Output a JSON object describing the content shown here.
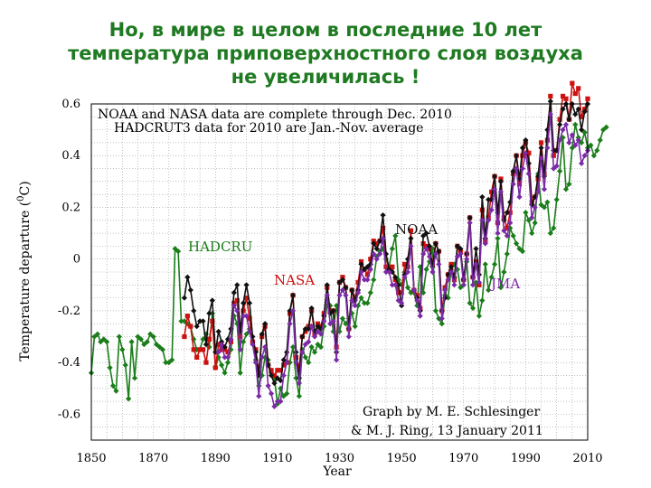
{
  "slide": {
    "title_lines": [
      "Но, в мире в целом в последние 10 лет",
      "температура приповерхностного слоя воздуха",
      "не увеличилась !"
    ]
  },
  "chart_data": {
    "type": "line",
    "title": "",
    "xlabel": "Year",
    "ylabel": "Temperature departure (°C)",
    "ylabel_parts": {
      "main": "Temperature departure (",
      "sup": "0",
      "unit": "C)"
    },
    "xlim": [
      1850,
      2010
    ],
    "ylim": [
      -0.7,
      0.6
    ],
    "x_ticks": [
      1850,
      1870,
      1890,
      1910,
      1930,
      1950,
      1970,
      1990,
      2010
    ],
    "x_tick_labels": [
      "1850",
      "1870",
      "1890",
      "1910",
      "1930",
      "1950",
      "1970",
      "1990",
      "2010"
    ],
    "y_ticks": [
      0.6,
      0.4,
      0.2,
      0,
      -0.2,
      -0.4,
      -0.6
    ],
    "y_tick_labels": [
      "0.6",
      "0.4",
      "0.2",
      "0",
      "-0.2",
      "-0.4",
      "-0.6"
    ],
    "grid": true,
    "notes": [
      "NOAA and NASA data are complete through Dec. 2010",
      "HADCRUT3 data for 2010 are Jan.-Nov. average"
    ],
    "credit": [
      "Graph by M. E. Schlesinger",
      "& M. J. Ring, 13 January 2011"
    ],
    "series": [
      {
        "name": "HADCRU",
        "label": "HADCRU",
        "color": "#1a7d1a",
        "marker": "diamond",
        "start_year": 1850,
        "values": [
          -0.44,
          -0.3,
          -0.29,
          -0.32,
          -0.31,
          -0.32,
          -0.42,
          -0.49,
          -0.51,
          -0.3,
          -0.35,
          -0.41,
          -0.54,
          -0.32,
          -0.46,
          -0.3,
          -0.31,
          -0.33,
          -0.32,
          -0.29,
          -0.3,
          -0.33,
          -0.34,
          -0.35,
          -0.4,
          -0.4,
          -0.39,
          0.04,
          0.03,
          -0.24,
          -0.24,
          -0.25,
          -0.26,
          -0.31,
          -0.35,
          -0.35,
          -0.31,
          -0.29,
          -0.34,
          -0.21,
          -0.42,
          -0.38,
          -0.41,
          -0.44,
          -0.4,
          -0.35,
          -0.22,
          -0.25,
          -0.44,
          -0.32,
          -0.29,
          -0.27,
          -0.32,
          -0.39,
          -0.49,
          -0.45,
          -0.38,
          -0.39,
          -0.44,
          -0.46,
          -0.56,
          -0.5,
          -0.53,
          -0.52,
          -0.4,
          -0.34,
          -0.46,
          -0.53,
          -0.35,
          -0.38,
          -0.4,
          -0.34,
          -0.36,
          -0.33,
          -0.34,
          -0.26,
          -0.18,
          -0.18,
          -0.28,
          -0.18,
          -0.28,
          -0.23,
          -0.25,
          -0.23,
          -0.21,
          -0.26,
          -0.18,
          -0.15,
          -0.17,
          -0.17,
          -0.13,
          -0.08,
          0.01,
          0.03,
          0.04,
          0.0,
          -0.03,
          0.04,
          0.09,
          -0.08,
          -0.1,
          -0.05,
          -0.11,
          -0.13,
          -0.13,
          -0.18,
          -0.03,
          -0.13,
          -0.04,
          -0.01,
          0.04,
          -0.2,
          -0.23,
          -0.25,
          -0.14,
          -0.15,
          -0.04,
          -0.02,
          -0.04,
          -0.11,
          -0.1,
          -0.01,
          -0.17,
          -0.19,
          -0.09,
          -0.22,
          -0.16,
          -0.02,
          -0.12,
          -0.07,
          -0.02,
          0.08,
          -0.11,
          -0.05,
          0.02,
          0.12,
          0.09,
          0.06,
          0.04,
          0.03,
          0.18,
          0.15,
          0.1,
          0.14,
          0.33,
          0.21,
          0.2,
          0.22,
          0.1,
          0.12,
          0.23,
          0.34,
          0.47,
          0.27,
          0.29,
          0.43,
          0.52,
          0.47,
          0.45,
          0.49,
          0.43,
          0.44,
          0.4,
          0.42,
          0.46,
          0.5,
          0.51
        ]
      },
      {
        "name": "NASA",
        "label": "NASA",
        "color": "#cc1111",
        "marker": "square",
        "start_year": 1880,
        "values": [
          -0.3,
          -0.22,
          -0.26,
          -0.35,
          -0.38,
          -0.35,
          -0.35,
          -0.4,
          -0.31,
          -0.24,
          -0.42,
          -0.33,
          -0.35,
          -0.35,
          -0.36,
          -0.32,
          -0.17,
          -0.16,
          -0.3,
          -0.2,
          -0.15,
          -0.23,
          -0.32,
          -0.35,
          -0.44,
          -0.3,
          -0.26,
          -0.41,
          -0.43,
          -0.45,
          -0.43,
          -0.43,
          -0.41,
          -0.4,
          -0.21,
          -0.14,
          -0.38,
          -0.42,
          -0.3,
          -0.28,
          -0.26,
          -0.2,
          -0.29,
          -0.25,
          -0.26,
          -0.21,
          -0.11,
          -0.2,
          -0.2,
          -0.34,
          -0.09,
          -0.07,
          -0.11,
          -0.27,
          -0.12,
          -0.15,
          -0.09,
          -0.01,
          -0.04,
          -0.06,
          0.0,
          0.07,
          0.06,
          0.07,
          0.12,
          -0.03,
          -0.04,
          -0.03,
          -0.08,
          -0.13,
          -0.13,
          -0.02,
          -0.03,
          0.11,
          -0.12,
          -0.14,
          -0.19,
          0.06,
          0.05,
          0.04,
          -0.02,
          0.06,
          0.03,
          -0.2,
          -0.11,
          -0.06,
          -0.02,
          -0.08,
          0.05,
          0.03,
          -0.08,
          0.02,
          0.16,
          -0.07,
          -0.01,
          -0.1,
          0.19,
          0.07,
          0.16,
          0.26,
          0.32,
          0.14,
          0.31,
          0.16,
          0.12,
          0.18,
          0.33,
          0.4,
          0.29,
          0.4,
          0.45,
          0.41,
          0.22,
          0.24,
          0.31,
          0.45,
          0.33,
          0.46,
          0.63,
          0.4,
          0.42,
          0.54,
          0.63,
          0.62,
          0.54,
          0.68,
          0.64,
          0.66,
          0.55,
          0.58,
          0.62
        ]
      },
      {
        "name": "NOAA",
        "label": "NOAA",
        "color": "#111111",
        "marker": "diamond",
        "start_year": 1880,
        "values": [
          -0.15,
          -0.07,
          -0.12,
          -0.2,
          -0.26,
          -0.24,
          -0.24,
          -0.33,
          -0.21,
          -0.16,
          -0.36,
          -0.28,
          -0.32,
          -0.34,
          -0.31,
          -0.27,
          -0.13,
          -0.1,
          -0.28,
          -0.17,
          -0.1,
          -0.17,
          -0.3,
          -0.36,
          -0.45,
          -0.29,
          -0.25,
          -0.41,
          -0.45,
          -0.48,
          -0.46,
          -0.47,
          -0.39,
          -0.36,
          -0.2,
          -0.14,
          -0.36,
          -0.46,
          -0.3,
          -0.27,
          -0.27,
          -0.19,
          -0.28,
          -0.26,
          -0.27,
          -0.22,
          -0.1,
          -0.21,
          -0.2,
          -0.36,
          -0.09,
          -0.08,
          -0.11,
          -0.27,
          -0.12,
          -0.16,
          -0.12,
          -0.02,
          -0.04,
          -0.03,
          -0.02,
          0.06,
          0.04,
          0.07,
          0.17,
          0.02,
          -0.04,
          -0.05,
          -0.07,
          -0.1,
          -0.18,
          -0.06,
          0.0,
          0.08,
          -0.12,
          -0.15,
          -0.2,
          0.09,
          0.1,
          0.05,
          -0.03,
          0.06,
          0.03,
          -0.2,
          -0.15,
          -0.06,
          -0.03,
          -0.07,
          0.05,
          0.04,
          -0.08,
          0.02,
          0.16,
          -0.07,
          0.04,
          -0.06,
          0.24,
          0.08,
          0.23,
          0.23,
          0.32,
          0.18,
          0.3,
          0.15,
          0.18,
          0.22,
          0.34,
          0.4,
          0.31,
          0.43,
          0.46,
          0.37,
          0.21,
          0.24,
          0.32,
          0.43,
          0.32,
          0.5,
          0.61,
          0.42,
          0.42,
          0.52,
          0.58,
          0.6,
          0.54,
          0.6,
          0.56,
          0.58,
          0.5,
          0.57,
          0.6
        ]
      },
      {
        "name": "JMA",
        "label": "JMA",
        "color": "#7a2aa6",
        "marker": "diamond",
        "start_year": 1891,
        "values": [
          -0.36,
          -0.33,
          -0.38,
          -0.38,
          -0.31,
          -0.18,
          -0.2,
          -0.35,
          -0.22,
          -0.22,
          -0.28,
          -0.33,
          -0.4,
          -0.53,
          -0.38,
          -0.34,
          -0.49,
          -0.52,
          -0.57,
          -0.55,
          -0.55,
          -0.45,
          -0.4,
          -0.25,
          -0.2,
          -0.4,
          -0.48,
          -0.36,
          -0.33,
          -0.32,
          -0.26,
          -0.3,
          -0.28,
          -0.29,
          -0.24,
          -0.14,
          -0.25,
          -0.24,
          -0.39,
          -0.14,
          -0.12,
          -0.14,
          -0.3,
          -0.16,
          -0.18,
          -0.13,
          -0.05,
          -0.08,
          -0.08,
          -0.04,
          0.02,
          0.0,
          0.02,
          0.08,
          -0.05,
          -0.05,
          -0.1,
          -0.1,
          -0.16,
          -0.17,
          -0.07,
          -0.05,
          0.05,
          -0.12,
          -0.16,
          -0.22,
          0.02,
          0.04,
          0.01,
          -0.05,
          0.02,
          -0.02,
          -0.23,
          -0.12,
          -0.08,
          -0.05,
          -0.1,
          0.01,
          0.02,
          -0.1,
          0.0,
          0.14,
          -0.1,
          -0.02,
          -0.09,
          0.15,
          0.06,
          0.15,
          0.19,
          0.27,
          0.1,
          0.26,
          0.11,
          0.09,
          0.14,
          0.29,
          0.35,
          0.24,
          0.35,
          0.41,
          0.33,
          0.16,
          0.2,
          0.26,
          0.39,
          0.27,
          0.43,
          0.56,
          0.35,
          0.36,
          0.46,
          0.5,
          0.52,
          0.45,
          0.48,
          0.44,
          0.46,
          0.37,
          0.4,
          0.42
        ]
      }
    ]
  }
}
